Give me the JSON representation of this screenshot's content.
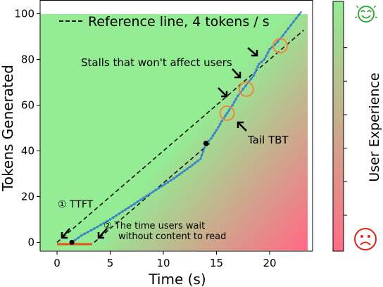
{
  "colors": {
    "good": "#94ec94",
    "bad": "#ff6c86",
    "curve": "#3b86c8",
    "circle": "#f0883a",
    "ttft_bar": "#e8531c",
    "dashed": "#111111"
  },
  "chart_data": {
    "type": "line",
    "xlabel": "Time (s)",
    "ylabel": "Tokens Generated",
    "xlim": [
      -1,
      24
    ],
    "ylim": [
      -2,
      102
    ],
    "xticks": [
      0,
      5,
      10,
      15,
      20
    ],
    "yticks": [
      0,
      20,
      40,
      60,
      80,
      100
    ],
    "grid": false,
    "legend": {
      "location": "top-left",
      "entries": [
        "Reference line, 4 tokens / s"
      ]
    },
    "series": [
      {
        "name": "Reference line, 4 tokens / s",
        "style": "dashed",
        "x": [
          0,
          23.2
        ],
        "y": [
          0,
          92.8
        ]
      },
      {
        "name": "",
        "style": "dashed",
        "x": [
          3.5,
          14.4
        ],
        "y": [
          0,
          43.5
        ]
      },
      {
        "name": "",
        "style": "dotted-line",
        "x": [
          1.4,
          2.3,
          3.5,
          5,
          7,
          9,
          11,
          12.5,
          13.5,
          14,
          14.5,
          15,
          15.5,
          16,
          16.5,
          17,
          17.5,
          18,
          18.5,
          19,
          19.5,
          20,
          20.5,
          21,
          21.5,
          22,
          22.5,
          23
        ],
        "y": [
          0,
          3,
          6,
          10,
          16,
          22,
          28,
          33,
          36.5,
          43,
          45.5,
          49,
          53,
          56.5,
          60,
          64,
          67,
          70,
          73,
          78,
          80,
          84.5,
          86.5,
          89,
          92,
          95,
          98,
          101
        ]
      }
    ],
    "points": [
      {
        "x": 1.4,
        "y": 0,
        "marker": "black-dot"
      },
      {
        "x": 14.0,
        "y": 43.3,
        "marker": "black-dot"
      }
    ],
    "highlight_circles": [
      {
        "x": 16.0,
        "y": 56.5
      },
      {
        "x": 17.8,
        "y": 67.0
      },
      {
        "x": 21.0,
        "y": 86.0
      }
    ],
    "ttft_bar": {
      "x": [
        0,
        3.3
      ],
      "y": -0.8
    },
    "annotations": {
      "stalls": "Stalls that won't affect users",
      "tail_tbt": "Tail TBT",
      "ttft": "① TTFT",
      "wait_line1": "② The time users wait",
      "wait_line2": "without content to read"
    },
    "colorbar": {
      "label": "User Experience",
      "top": "good",
      "bottom": "bad"
    }
  }
}
